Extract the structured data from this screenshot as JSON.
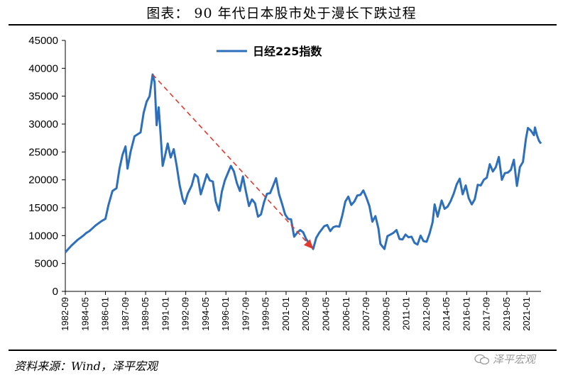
{
  "title": "图表：  90 年代日本股市处于漫长下跌过程",
  "source": "资料来源：Wind，泽平宏观",
  "watermark": "泽平宏观",
  "colors": {
    "series": "#2e6fbc",
    "trend_arrow": "#e03a2f",
    "axis": "#000000"
  },
  "chart_data": {
    "type": "line",
    "title": "",
    "xlabel": "",
    "ylabel": "",
    "ylim": [
      0,
      45000
    ],
    "yticks": [
      0,
      5000,
      10000,
      15000,
      20000,
      25000,
      30000,
      35000,
      40000,
      45000
    ],
    "xlim": [
      "1982-09",
      "2022-03"
    ],
    "xticks": [
      "1982-09",
      "1984-05",
      "1986-01",
      "1987-09",
      "1989-05",
      "1991-01",
      "1992-09",
      "1994-05",
      "1996-01",
      "1997-09",
      "1999-05",
      "2001-01",
      "2002-09",
      "2004-05",
      "2006-01",
      "2007-09",
      "2009-05",
      "2011-01",
      "2012-09",
      "2014-05",
      "2016-01",
      "2017-09",
      "2019-05",
      "2021-01"
    ],
    "grid": false,
    "legend_position": "top-center",
    "series": [
      {
        "name": "日经225指数",
        "points": [
          [
            "1982-09",
            7000
          ],
          [
            "1983-03",
            8200
          ],
          [
            "1983-09",
            9200
          ],
          [
            "1984-03",
            10000
          ],
          [
            "1984-06",
            10500
          ],
          [
            "1984-09",
            10800
          ],
          [
            "1985-03",
            11800
          ],
          [
            "1985-09",
            12600
          ],
          [
            "1986-01",
            13000
          ],
          [
            "1986-04",
            15500
          ],
          [
            "1986-08",
            18000
          ],
          [
            "1986-12",
            18500
          ],
          [
            "1987-03",
            22000
          ],
          [
            "1987-06",
            24500
          ],
          [
            "1987-09",
            26000
          ],
          [
            "1987-11",
            22000
          ],
          [
            "1988-02",
            25000
          ],
          [
            "1988-06",
            27800
          ],
          [
            "1988-12",
            28500
          ],
          [
            "1989-03",
            32000
          ],
          [
            "1989-06",
            34000
          ],
          [
            "1989-09",
            35000
          ],
          [
            "1989-12",
            38900
          ],
          [
            "1990-02",
            37500
          ],
          [
            "1990-04",
            29800
          ],
          [
            "1990-06",
            33000
          ],
          [
            "1990-08",
            28000
          ],
          [
            "1990-10",
            22500
          ],
          [
            "1990-12",
            24000
          ],
          [
            "1991-03",
            26500
          ],
          [
            "1991-06",
            24000
          ],
          [
            "1991-09",
            25500
          ],
          [
            "1991-12",
            22500
          ],
          [
            "1992-03",
            19000
          ],
          [
            "1992-06",
            16500
          ],
          [
            "1992-08",
            15700
          ],
          [
            "1992-11",
            17500
          ],
          [
            "1993-03",
            19000
          ],
          [
            "1993-06",
            21000
          ],
          [
            "1993-09",
            20500
          ],
          [
            "1993-12",
            17400
          ],
          [
            "1994-03",
            19200
          ],
          [
            "1994-06",
            21000
          ],
          [
            "1994-09",
            19900
          ],
          [
            "1994-12",
            19700
          ],
          [
            "1995-03",
            16100
          ],
          [
            "1995-06",
            14500
          ],
          [
            "1995-09",
            17900
          ],
          [
            "1995-12",
            19900
          ],
          [
            "1996-06",
            22500
          ],
          [
            "1996-09",
            21500
          ],
          [
            "1996-12",
            19400
          ],
          [
            "1997-03",
            18000
          ],
          [
            "1997-06",
            20600
          ],
          [
            "1997-09",
            17900
          ],
          [
            "1997-12",
            15300
          ],
          [
            "1998-03",
            16500
          ],
          [
            "1998-06",
            15800
          ],
          [
            "1998-09",
            13400
          ],
          [
            "1998-12",
            13800
          ],
          [
            "1999-03",
            16000
          ],
          [
            "1999-06",
            17500
          ],
          [
            "1999-09",
            17600
          ],
          [
            "1999-12",
            18900
          ],
          [
            "2000-03",
            20300
          ],
          [
            "2000-06",
            17400
          ],
          [
            "2000-09",
            15700
          ],
          [
            "2000-12",
            13800
          ],
          [
            "2001-03",
            13000
          ],
          [
            "2001-06",
            12900
          ],
          [
            "2001-09",
            9800
          ],
          [
            "2001-12",
            10500
          ],
          [
            "2002-03",
            11000
          ],
          [
            "2002-06",
            10600
          ],
          [
            "2002-09",
            9400
          ],
          [
            "2002-12",
            8600
          ],
          [
            "2003-03",
            7900
          ],
          [
            "2003-04",
            7600
          ],
          [
            "2003-07",
            9600
          ],
          [
            "2003-10",
            10500
          ],
          [
            "2004-03",
            11700
          ],
          [
            "2004-06",
            11900
          ],
          [
            "2004-09",
            10800
          ],
          [
            "2004-12",
            11500
          ],
          [
            "2005-03",
            11700
          ],
          [
            "2005-06",
            11600
          ],
          [
            "2005-09",
            13600
          ],
          [
            "2005-12",
            16100
          ],
          [
            "2006-03",
            17000
          ],
          [
            "2006-06",
            15500
          ],
          [
            "2006-09",
            16100
          ],
          [
            "2006-12",
            17200
          ],
          [
            "2007-03",
            17300
          ],
          [
            "2007-06",
            18100
          ],
          [
            "2007-09",
            16800
          ],
          [
            "2007-12",
            15300
          ],
          [
            "2008-03",
            12500
          ],
          [
            "2008-06",
            13500
          ],
          [
            "2008-09",
            11300
          ],
          [
            "2008-11",
            8500
          ],
          [
            "2009-03",
            7600
          ],
          [
            "2009-06",
            9900
          ],
          [
            "2009-09",
            10200
          ],
          [
            "2009-12",
            10500
          ],
          [
            "2010-03",
            11000
          ],
          [
            "2010-06",
            9400
          ],
          [
            "2010-09",
            9300
          ],
          [
            "2010-12",
            10200
          ],
          [
            "2011-03",
            9700
          ],
          [
            "2011-06",
            9800
          ],
          [
            "2011-09",
            8700
          ],
          [
            "2011-12",
            8400
          ],
          [
            "2012-03",
            10000
          ],
          [
            "2012-06",
            9000
          ],
          [
            "2012-09",
            8900
          ],
          [
            "2012-12",
            10400
          ],
          [
            "2013-03",
            12400
          ],
          [
            "2013-05",
            15600
          ],
          [
            "2013-08",
            13400
          ],
          [
            "2013-12",
            16300
          ],
          [
            "2014-03",
            14800
          ],
          [
            "2014-06",
            15200
          ],
          [
            "2014-09",
            16200
          ],
          [
            "2014-12",
            17500
          ],
          [
            "2015-03",
            19200
          ],
          [
            "2015-06",
            20200
          ],
          [
            "2015-09",
            17400
          ],
          [
            "2015-12",
            19000
          ],
          [
            "2016-03",
            16700
          ],
          [
            "2016-06",
            15600
          ],
          [
            "2016-09",
            16500
          ],
          [
            "2016-12",
            19100
          ],
          [
            "2017-03",
            19000
          ],
          [
            "2017-06",
            20000
          ],
          [
            "2017-09",
            20400
          ],
          [
            "2017-12",
            22800
          ],
          [
            "2018-03",
            21500
          ],
          [
            "2018-06",
            22300
          ],
          [
            "2018-09",
            24100
          ],
          [
            "2018-12",
            20000
          ],
          [
            "2019-03",
            21200
          ],
          [
            "2019-06",
            21300
          ],
          [
            "2019-09",
            21800
          ],
          [
            "2019-12",
            23600
          ],
          [
            "2020-03",
            18900
          ],
          [
            "2020-06",
            22300
          ],
          [
            "2020-09",
            23200
          ],
          [
            "2020-12",
            27400
          ],
          [
            "2021-02",
            29300
          ],
          [
            "2021-05",
            28800
          ],
          [
            "2021-08",
            28000
          ],
          [
            "2021-09",
            29400
          ],
          [
            "2021-11",
            28000
          ],
          [
            "2022-01",
            27000
          ],
          [
            "2022-03",
            26500
          ]
        ]
      }
    ],
    "annotations": [
      {
        "type": "arrow",
        "style": "dashed",
        "from": [
          "1989-12",
          38900
        ],
        "to": [
          "2003-04",
          7600
        ]
      }
    ]
  }
}
